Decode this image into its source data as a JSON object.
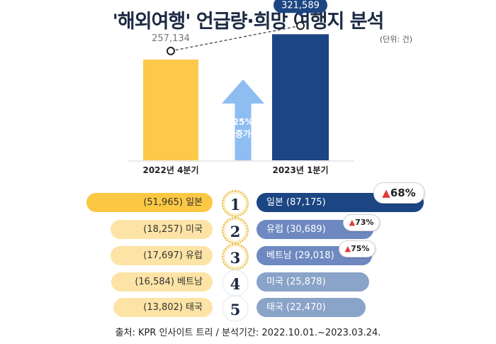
{
  "header": {
    "title": "'해외여행' 언급량·희망 여행지 분석",
    "unit": "(단위: 건)"
  },
  "colors": {
    "q4_bar": "#fdc94a",
    "q1_bar": "#1c4583",
    "arrow": "#8ebdf2",
    "left_pill_top": "#fbc843",
    "left_pill": "#fde4a6",
    "right_pill_top": "#1c4583",
    "right_pill_mid": "#6d89c0",
    "right_pill_low": "#8aa3c8",
    "growth_marker": "#e23a3a"
  },
  "chart_data": [
    {
      "type": "bar",
      "categories": [
        "2022년 4분기",
        "2023년 1분기"
      ],
      "values": [
        257134,
        321589
      ],
      "value_labels": [
        "257,134",
        "321,589"
      ],
      "ylim": [
        0,
        380000
      ],
      "annotation": {
        "line1": "25%",
        "line2": "증가"
      }
    },
    {
      "type": "bar",
      "ranks": [
        "1",
        "2",
        "3",
        "4",
        "5"
      ],
      "prev_period": [
        {
          "label": "(51,965) 일본",
          "value": 51965
        },
        {
          "label": "(18,257) 미국",
          "value": 18257
        },
        {
          "label": "(17,697) 유럽",
          "value": 17697
        },
        {
          "label": "(16,584) 베트남",
          "value": 16584
        },
        {
          "label": "(13,802) 태국",
          "value": 13802
        }
      ],
      "curr_period": [
        {
          "label": "일본 (87,175)",
          "value": 87175,
          "growth": "68%"
        },
        {
          "label": "유럽 (30,689)",
          "value": 30689,
          "growth": "73%"
        },
        {
          "label": "베트남 (29,018)",
          "value": 29018,
          "growth": "75%"
        },
        {
          "label": "미국 (25,878)",
          "value": 25878
        },
        {
          "label": "태국 (22,470)",
          "value": 22470
        }
      ],
      "growth_marker": "▲"
    }
  ],
  "footer": {
    "source": "출처: KPR 인사이트 트리 / 분석기간: 2022.10.01.~2023.03.24."
  }
}
